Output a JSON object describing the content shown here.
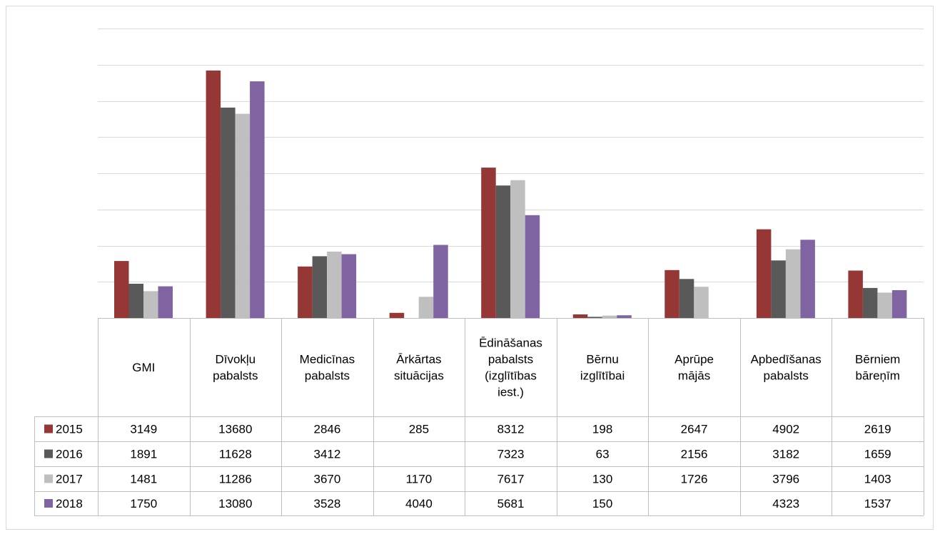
{
  "chart_data": {
    "type": "bar",
    "title": "",
    "xlabel": "",
    "ylabel": "",
    "ylim": [
      0,
      16000
    ],
    "y_gridline_step": 2000,
    "y_tick_labels_visible": false,
    "legend_placement": "data-table-left",
    "grid": true,
    "categories": [
      [
        "GMI"
      ],
      [
        "Dīvokļu",
        "pabalsts"
      ],
      [
        "Medicīnas",
        "pabalsts"
      ],
      [
        "Ārkārtas",
        "situācijas"
      ],
      [
        "Ēdināšanas",
        "pabalsts",
        "(izglītības",
        "iest.)"
      ],
      [
        "Bērnu",
        "izglītībai"
      ],
      [
        "Aprūpe",
        "mājās"
      ],
      [
        "Apbedīšanas",
        "pabalsts"
      ],
      [
        "Bērniem",
        "bāreņīm"
      ]
    ],
    "series": [
      {
        "name": "2015",
        "color": "#953735",
        "values": [
          3149,
          13680,
          2846,
          285,
          8312,
          198,
          2647,
          4902,
          2619
        ],
        "labels": [
          "3149",
          "13680",
          "2846",
          "285",
          "8312",
          "198",
          "2647",
          "4902",
          "2619"
        ]
      },
      {
        "name": "2016",
        "color": "#595959",
        "values": [
          1891,
          11628,
          3412,
          null,
          7323,
          63,
          2156,
          3182,
          1659
        ],
        "labels": [
          "1891",
          "11628",
          "3412",
          "",
          "7323",
          "63",
          "2156",
          "3182",
          "1659"
        ]
      },
      {
        "name": "2017",
        "color": "#bfbfbf",
        "values": [
          1481,
          11286,
          3670,
          1170,
          7617,
          130,
          1726,
          3796,
          1403
        ],
        "labels": [
          "1481",
          "11286",
          "3670",
          "1170",
          "7617",
          "130",
          "1726",
          "3796",
          "1403"
        ]
      },
      {
        "name": "2018",
        "color": "#8064a2",
        "values": [
          1750,
          13080,
          3528,
          4040,
          5681,
          150,
          null,
          4323,
          1537
        ],
        "labels": [
          "1750",
          "13080",
          "3528",
          "4040",
          "5681",
          "150",
          "",
          "4323",
          "1537"
        ]
      }
    ]
  }
}
